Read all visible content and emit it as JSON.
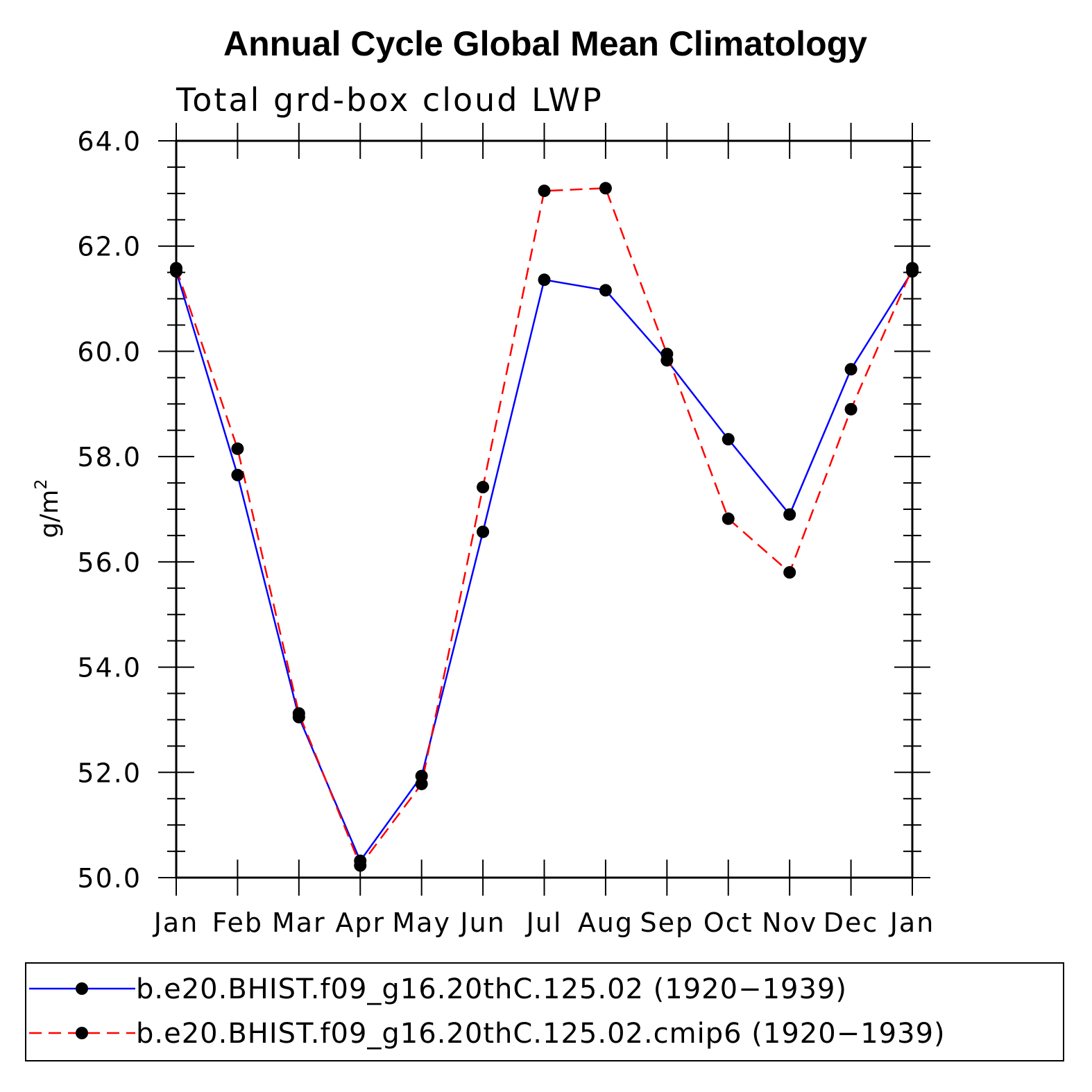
{
  "chart_data": {
    "type": "line",
    "title": "Annual Cycle Global Mean Climatology",
    "subtitle": "Total grd-box cloud LWP",
    "ylabel": "g/m",
    "ylabel_superscript": "2",
    "xlabel": "",
    "ylim": [
      50.0,
      64.0
    ],
    "yticks": [
      "50.0",
      "52.0",
      "54.0",
      "56.0",
      "58.0",
      "60.0",
      "62.0",
      "64.0"
    ],
    "categories": [
      "Jan",
      "Feb",
      "Mar",
      "Apr",
      "May",
      "Jun",
      "Jul",
      "Aug",
      "Sep",
      "Oct",
      "Nov",
      "Dec",
      "Jan"
    ],
    "series": [
      {
        "name": "b.e20.BHIST.f09_g16.20thC.125.02 (1920−1939)",
        "color": "#0000ff",
        "dash": "solid",
        "values": [
          61.52,
          57.65,
          53.05,
          50.32,
          51.93,
          56.57,
          61.36,
          61.16,
          59.83,
          58.33,
          56.9,
          59.66,
          61.52
        ]
      },
      {
        "name": "b.e20.BHIST.f09_g16.20thC.125.02.cmip6 (1920−1939)",
        "color": "#ff0000",
        "dash": "dashed",
        "values": [
          61.58,
          58.15,
          53.12,
          50.23,
          51.78,
          57.42,
          63.05,
          63.1,
          59.95,
          56.82,
          55.8,
          58.9,
          61.58
        ]
      }
    ],
    "legend_position": "bottom",
    "grid": false
  }
}
